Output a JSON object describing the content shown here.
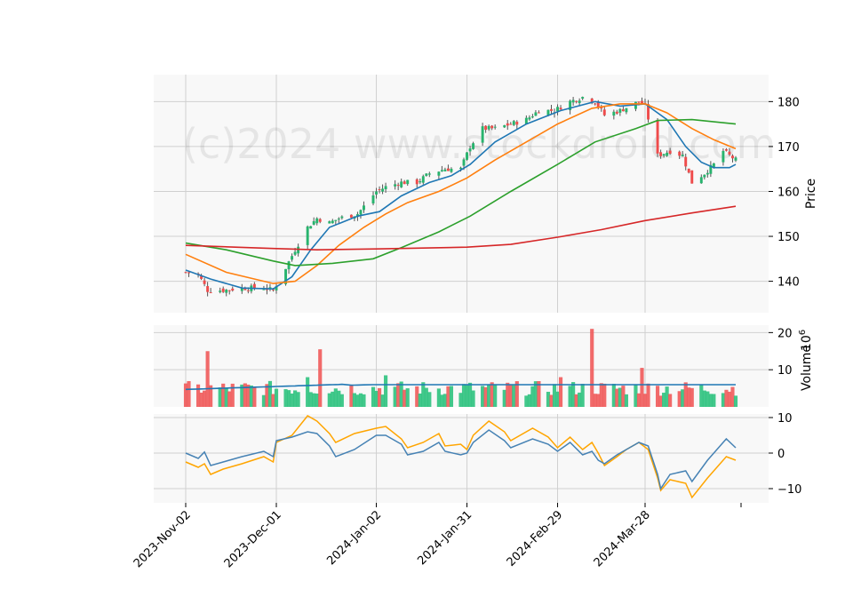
{
  "watermark": "(c)2024 www.stockdroid.com",
  "chart_data": [
    {
      "type": "candlestick",
      "panel": "price",
      "ylabel": "Price",
      "ylim": [
        133,
        186
      ],
      "yticks": [
        140,
        150,
        160,
        170,
        180
      ],
      "x_start": "2023-11-02",
      "x_end": "2024-04-26",
      "xticks": [
        "2023-Nov-02",
        "2023-Dec-01",
        "2024-Jan-02",
        "2024-Jan-31",
        "2024-Feb-29",
        "2024-Mar-28"
      ],
      "grid": true,
      "close_anchors": [
        [
          "2023-11-02",
          142
        ],
        [
          "2023-11-06",
          141.5
        ],
        [
          "2023-11-09",
          138
        ],
        [
          "2023-11-14",
          138
        ],
        [
          "2023-11-20",
          138.5
        ],
        [
          "2023-11-27",
          138.5
        ],
        [
          "2023-11-30",
          138
        ],
        [
          "2023-12-04",
          143
        ],
        [
          "2023-12-07",
          147
        ],
        [
          "2023-12-11",
          152
        ],
        [
          "2023-12-14",
          154
        ],
        [
          "2023-12-18",
          153
        ],
        [
          "2023-12-21",
          154
        ],
        [
          "2023-12-27",
          155
        ],
        [
          "2024-01-02",
          160
        ],
        [
          "2024-01-05",
          161
        ],
        [
          "2024-01-10",
          162
        ],
        [
          "2024-01-15",
          162
        ],
        [
          "2024-01-19",
          164
        ],
        [
          "2024-01-24",
          165
        ],
        [
          "2024-01-29",
          165
        ],
        [
          "2024-02-01",
          170
        ],
        [
          "2024-02-05",
          174
        ],
        [
          "2024-02-09",
          174
        ],
        [
          "2024-02-14",
          175
        ],
        [
          "2024-02-19",
          176
        ],
        [
          "2024-02-23",
          178
        ],
        [
          "2024-02-28",
          178
        ],
        [
          "2024-03-04",
          180
        ],
        [
          "2024-03-08",
          181
        ],
        [
          "2024-03-12",
          180
        ],
        [
          "2024-03-15",
          177
        ],
        [
          "2024-03-20",
          178
        ],
        [
          "2024-03-26",
          180
        ],
        [
          "2024-03-28",
          179
        ],
        [
          "2024-04-01",
          168
        ],
        [
          "2024-04-05",
          169
        ],
        [
          "2024-04-09",
          168
        ],
        [
          "2024-04-12",
          162
        ],
        [
          "2024-04-16",
          164
        ],
        [
          "2024-04-19",
          166
        ],
        [
          "2024-04-22",
          169
        ],
        [
          "2024-04-26",
          167
        ]
      ],
      "series": [
        {
          "name": "",
          "color": "#1f77b4",
          "points": [
            [
              "2023-11-02",
              142.5
            ],
            [
              "2023-11-10",
              140.5
            ],
            [
              "2023-11-20",
              138.5
            ],
            [
              "2023-11-30",
              138.3
            ],
            [
              "2023-12-06",
              141
            ],
            [
              "2023-12-12",
              147
            ],
            [
              "2023-12-18",
              152
            ],
            [
              "2023-12-27",
              154.5
            ],
            [
              "2024-01-03",
              155.5
            ],
            [
              "2024-01-10",
              159
            ],
            [
              "2024-01-19",
              162
            ],
            [
              "2024-01-26",
              163.5
            ],
            [
              "2024-02-01",
              166
            ],
            [
              "2024-02-09",
              171
            ],
            [
              "2024-02-19",
              175
            ],
            [
              "2024-03-01",
              178
            ],
            [
              "2024-03-12",
              180
            ],
            [
              "2024-03-20",
              179
            ],
            [
              "2024-03-28",
              179.5
            ],
            [
              "2024-04-04",
              176
            ],
            [
              "2024-04-10",
              170
            ],
            [
              "2024-04-15",
              166.5
            ],
            [
              "2024-04-19",
              165.3
            ],
            [
              "2024-04-24",
              165.3
            ],
            [
              "2024-04-26",
              166
            ]
          ]
        },
        {
          "name": "",
          "color": "#ff7f0e",
          "points": [
            [
              "2023-11-02",
              146
            ],
            [
              "2023-11-15",
              142
            ],
            [
              "2023-11-30",
              139.5
            ],
            [
              "2023-12-07",
              140
            ],
            [
              "2023-12-14",
              143.5
            ],
            [
              "2023-12-21",
              148
            ],
            [
              "2023-12-29",
              152
            ],
            [
              "2024-01-05",
              155
            ],
            [
              "2024-01-12",
              157.5
            ],
            [
              "2024-01-22",
              160
            ],
            [
              "2024-01-31",
              163
            ],
            [
              "2024-02-09",
              167
            ],
            [
              "2024-02-19",
              171
            ],
            [
              "2024-02-29",
              175
            ],
            [
              "2024-03-11",
              178.5
            ],
            [
              "2024-03-20",
              179.5
            ],
            [
              "2024-03-28",
              179.5
            ],
            [
              "2024-04-04",
              177.5
            ],
            [
              "2024-04-12",
              174
            ],
            [
              "2024-04-19",
              171.5
            ],
            [
              "2024-04-26",
              169.5
            ]
          ]
        },
        {
          "name": "",
          "color": "#2ca02c",
          "points": [
            [
              "2023-11-02",
              148.5
            ],
            [
              "2023-11-15",
              147
            ],
            [
              "2023-11-30",
              144.5
            ],
            [
              "2023-12-07",
              143.5
            ],
            [
              "2023-12-19",
              144
            ],
            [
              "2024-01-01",
              145
            ],
            [
              "2024-01-10",
              147.5
            ],
            [
              "2024-01-22",
              151
            ],
            [
              "2024-02-01",
              154.5
            ],
            [
              "2024-02-14",
              160
            ],
            [
              "2024-02-29",
              166
            ],
            [
              "2024-03-12",
              171
            ],
            [
              "2024-03-25",
              174
            ],
            [
              "2024-04-01",
              175.8
            ],
            [
              "2024-04-12",
              176
            ],
            [
              "2024-04-26",
              175
            ]
          ]
        },
        {
          "name": "",
          "color": "#d62728",
          "points": [
            [
              "2023-11-02",
              148
            ],
            [
              "2023-11-30",
              147.3
            ],
            [
              "2023-12-14",
              147
            ],
            [
              "2024-01-02",
              147.2
            ],
            [
              "2024-01-31",
              147.6
            ],
            [
              "2024-02-14",
              148.2
            ],
            [
              "2024-02-29",
              149.8
            ],
            [
              "2024-03-14",
              151.5
            ],
            [
              "2024-03-28",
              153.5
            ],
            [
              "2024-04-12",
              155.2
            ],
            [
              "2024-04-26",
              156.7
            ]
          ]
        }
      ]
    },
    {
      "type": "bar",
      "panel": "volume",
      "ylabel": "Volume",
      "exponent": "10^6",
      "ylim": [
        0,
        22
      ],
      "yticks": [
        10,
        20
      ],
      "spikes": [
        [
          "2023-11-09",
          15
        ],
        [
          "2023-12-15",
          15.5
        ],
        [
          "2024-03-11",
          21
        ],
        [
          "2024-03-27",
          10.5
        ],
        [
          "2024-03-01",
          8
        ],
        [
          "2023-12-11",
          8
        ],
        [
          "2024-01-05",
          8.5
        ]
      ],
      "base_volume": 5,
      "average_line": {
        "name": "",
        "color": "#1f77b4",
        "value_range": [
          4.7,
          6.3
        ]
      }
    },
    {
      "type": "line",
      "panel": "oscillator",
      "ylim": [
        -14,
        11
      ],
      "yticks": [
        -10,
        0,
        10
      ],
      "series": [
        {
          "name": "",
          "color": "#4682b4",
          "points": [
            [
              "2023-11-02",
              0
            ],
            [
              "2023-11-06",
              -1.5
            ],
            [
              "2023-11-08",
              0.3
            ],
            [
              "2023-11-10",
              -3.5
            ],
            [
              "2023-11-14",
              -2.5
            ],
            [
              "2023-11-20",
              -1
            ],
            [
              "2023-11-27",
              0.5
            ],
            [
              "2023-11-30",
              -1
            ],
            [
              "2023-12-01",
              3.5
            ],
            [
              "2023-12-06",
              4.5
            ],
            [
              "2023-12-11",
              6
            ],
            [
              "2023-12-14",
              5.5
            ],
            [
              "2023-12-18",
              2
            ],
            [
              "2023-12-20",
              -1
            ],
            [
              "2023-12-26",
              1
            ],
            [
              "2024-01-02",
              5
            ],
            [
              "2024-01-05",
              5
            ],
            [
              "2024-01-10",
              2.5
            ],
            [
              "2024-01-12",
              -0.5
            ],
            [
              "2024-01-17",
              0.5
            ],
            [
              "2024-01-22",
              3
            ],
            [
              "2024-01-24",
              0.5
            ],
            [
              "2024-01-29",
              -0.5
            ],
            [
              "2024-01-31",
              0
            ],
            [
              "2024-02-02",
              3
            ],
            [
              "2024-02-07",
              6.5
            ],
            [
              "2024-02-12",
              3.5
            ],
            [
              "2024-02-14",
              1.5
            ],
            [
              "2024-02-21",
              4
            ],
            [
              "2024-02-26",
              2.5
            ],
            [
              "2024-02-29",
              0.5
            ],
            [
              "2024-03-04",
              3
            ],
            [
              "2024-03-08",
              -0.5
            ],
            [
              "2024-03-11",
              0.5
            ],
            [
              "2024-03-13",
              -2
            ],
            [
              "2024-03-15",
              -3
            ],
            [
              "2024-03-19",
              -0.5
            ],
            [
              "2024-03-22",
              1
            ],
            [
              "2024-03-26",
              3
            ],
            [
              "2024-03-29",
              2
            ],
            [
              "2024-04-01",
              -6
            ],
            [
              "2024-04-02",
              -10
            ],
            [
              "2024-04-05",
              -6
            ],
            [
              "2024-04-10",
              -5
            ],
            [
              "2024-04-12",
              -8
            ],
            [
              "2024-04-17",
              -2
            ],
            [
              "2024-04-23",
              4
            ],
            [
              "2024-04-26",
              1.5
            ]
          ]
        },
        {
          "name": "",
          "color": "#ffa500",
          "points": [
            [
              "2023-11-02",
              -2.5
            ],
            [
              "2023-11-06",
              -4
            ],
            [
              "2023-11-08",
              -3
            ],
            [
              "2023-11-10",
              -6
            ],
            [
              "2023-11-14",
              -4.5
            ],
            [
              "2023-11-20",
              -3
            ],
            [
              "2023-11-27",
              -1
            ],
            [
              "2023-11-30",
              -2.5
            ],
            [
              "2023-12-01",
              3
            ],
            [
              "2023-12-06",
              5
            ],
            [
              "2023-12-11",
              10.5
            ],
            [
              "2023-12-14",
              9
            ],
            [
              "2023-12-18",
              5.5
            ],
            [
              "2023-12-20",
              3
            ],
            [
              "2023-12-26",
              5.5
            ],
            [
              "2024-01-02",
              7
            ],
            [
              "2024-01-05",
              7.5
            ],
            [
              "2024-01-10",
              4
            ],
            [
              "2024-01-12",
              1.5
            ],
            [
              "2024-01-17",
              3
            ],
            [
              "2024-01-22",
              5.5
            ],
            [
              "2024-01-24",
              2
            ],
            [
              "2024-01-29",
              2.5
            ],
            [
              "2024-01-31",
              1
            ],
            [
              "2024-02-02",
              5
            ],
            [
              "2024-02-07",
              9
            ],
            [
              "2024-02-12",
              6
            ],
            [
              "2024-02-14",
              3.5
            ],
            [
              "2024-02-21",
              7
            ],
            [
              "2024-02-26",
              4.5
            ],
            [
              "2024-02-29",
              1.5
            ],
            [
              "2024-03-04",
              4.5
            ],
            [
              "2024-03-08",
              1
            ],
            [
              "2024-03-11",
              3
            ],
            [
              "2024-03-13",
              0
            ],
            [
              "2024-03-15",
              -3.5
            ],
            [
              "2024-03-19",
              -1
            ],
            [
              "2024-03-22",
              1
            ],
            [
              "2024-03-26",
              3
            ],
            [
              "2024-03-29",
              1
            ],
            [
              "2024-04-01",
              -7
            ],
            [
              "2024-04-02",
              -10.5
            ],
            [
              "2024-04-05",
              -7.5
            ],
            [
              "2024-04-10",
              -8.5
            ],
            [
              "2024-04-12",
              -12.5
            ],
            [
              "2024-04-17",
              -7
            ],
            [
              "2024-04-23",
              -1
            ],
            [
              "2024-04-26",
              -2
            ]
          ]
        }
      ]
    }
  ]
}
